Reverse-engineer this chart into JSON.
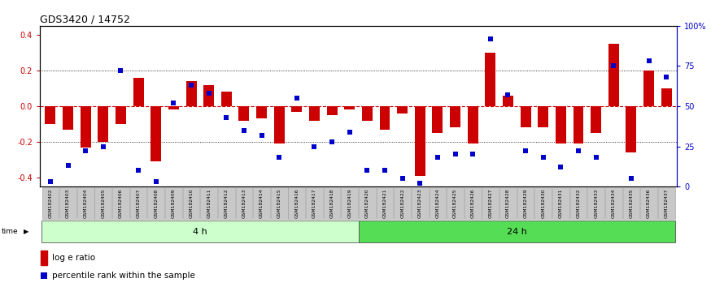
{
  "title": "GDS3420 / 14752",
  "samples": [
    "GSM182402",
    "GSM182403",
    "GSM182404",
    "GSM182405",
    "GSM182406",
    "GSM182407",
    "GSM182408",
    "GSM182409",
    "GSM182410",
    "GSM182411",
    "GSM182412",
    "GSM182413",
    "GSM182414",
    "GSM182415",
    "GSM182416",
    "GSM182417",
    "GSM182418",
    "GSM182419",
    "GSM182420",
    "GSM182421",
    "GSM182422",
    "GSM182423",
    "GSM182424",
    "GSM182425",
    "GSM182426",
    "GSM182427",
    "GSM182428",
    "GSM182429",
    "GSM182430",
    "GSM182431",
    "GSM182432",
    "GSM182433",
    "GSM182434",
    "GSM182435",
    "GSM182436",
    "GSM182437"
  ],
  "log_ratio": [
    -0.1,
    -0.13,
    -0.23,
    -0.2,
    -0.1,
    0.16,
    -0.31,
    -0.02,
    0.14,
    0.12,
    0.08,
    -0.08,
    -0.07,
    -0.21,
    -0.03,
    -0.08,
    -0.05,
    -0.02,
    -0.08,
    -0.13,
    -0.04,
    -0.39,
    -0.15,
    -0.12,
    -0.21,
    0.3,
    0.06,
    -0.12,
    -0.12,
    -0.21,
    -0.21,
    -0.15,
    0.35,
    -0.26,
    0.2,
    0.1
  ],
  "percentile": [
    3,
    13,
    22,
    25,
    72,
    10,
    3,
    52,
    63,
    58,
    43,
    35,
    32,
    18,
    55,
    25,
    28,
    34,
    10,
    10,
    5,
    2,
    18,
    20,
    20,
    92,
    57,
    22,
    18,
    12,
    22,
    18,
    75,
    5,
    78,
    68
  ],
  "group1_count": 18,
  "group1_label": "4 h",
  "group2_label": "24 h",
  "ylim": [
    -0.45,
    0.45
  ],
  "yticks_left": [
    -0.4,
    -0.2,
    0.0,
    0.2,
    0.4
  ],
  "yticks_right": [
    0,
    25,
    50,
    75,
    100
  ],
  "right_ylabels": [
    "0",
    "25",
    "50",
    "75",
    "100%"
  ],
  "bar_color": "#CC0000",
  "dot_color": "#0000CC",
  "zero_line_color": "#CC0000",
  "tick_label_bg": "#C8C8C8",
  "group1_bg": "#CCFFCC",
  "group2_bg": "#55DD55",
  "legend_bar_label": "log e ratio",
  "legend_dot_label": "percentile rank within the sample"
}
